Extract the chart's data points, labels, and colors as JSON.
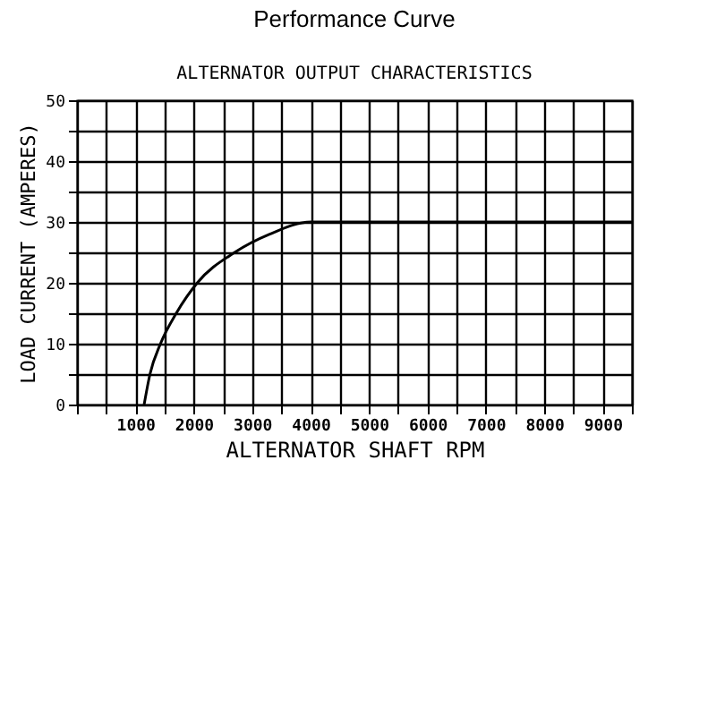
{
  "chart_data": {
    "type": "line",
    "title": "Performance Curve",
    "subtitle": "ALTERNATOR OUTPUT CHARACTERISTICS",
    "xlabel": "ALTERNATOR SHAFT RPM",
    "ylabel": "LOAD CURRENT (AMPERES)",
    "x": [
      1150,
      1250,
      1430,
      1700,
      2060,
      2700,
      3300,
      4000,
      9500
    ],
    "series": [
      {
        "color": "#000000",
        "values": [
          0,
          5,
          10,
          15,
          20,
          25,
          28,
          30,
          30
        ]
      }
    ],
    "xlim": [
      0,
      9500
    ],
    "xticks": [
      {
        "value": 0,
        "label": null
      },
      {
        "value": 500,
        "label": null
      },
      1000,
      {
        "value": 1500,
        "label": null
      },
      2000,
      {
        "value": 2500,
        "label": null
      },
      3000,
      {
        "value": 3500,
        "label": null
      },
      4000,
      {
        "value": 4500,
        "label": null
      },
      5000,
      {
        "value": 5500,
        "label": null
      },
      6000,
      {
        "value": 6500,
        "label": null
      },
      7000,
      {
        "value": 7500,
        "label": null
      },
      8000,
      {
        "value": 8500,
        "label": null
      },
      9000,
      {
        "value": 9500,
        "label": null
      }
    ],
    "ylim": [
      0,
      50
    ],
    "yticks": [
      0,
      {
        "value": 5,
        "label": null
      },
      10,
      {
        "value": 15,
        "label": null
      },
      20,
      {
        "value": 25,
        "label": null
      },
      30,
      {
        "value": 35,
        "label": null
      },
      40,
      {
        "value": 45,
        "label": null
      },
      50
    ],
    "grid": true,
    "marker": "none",
    "line_style": "solid"
  }
}
